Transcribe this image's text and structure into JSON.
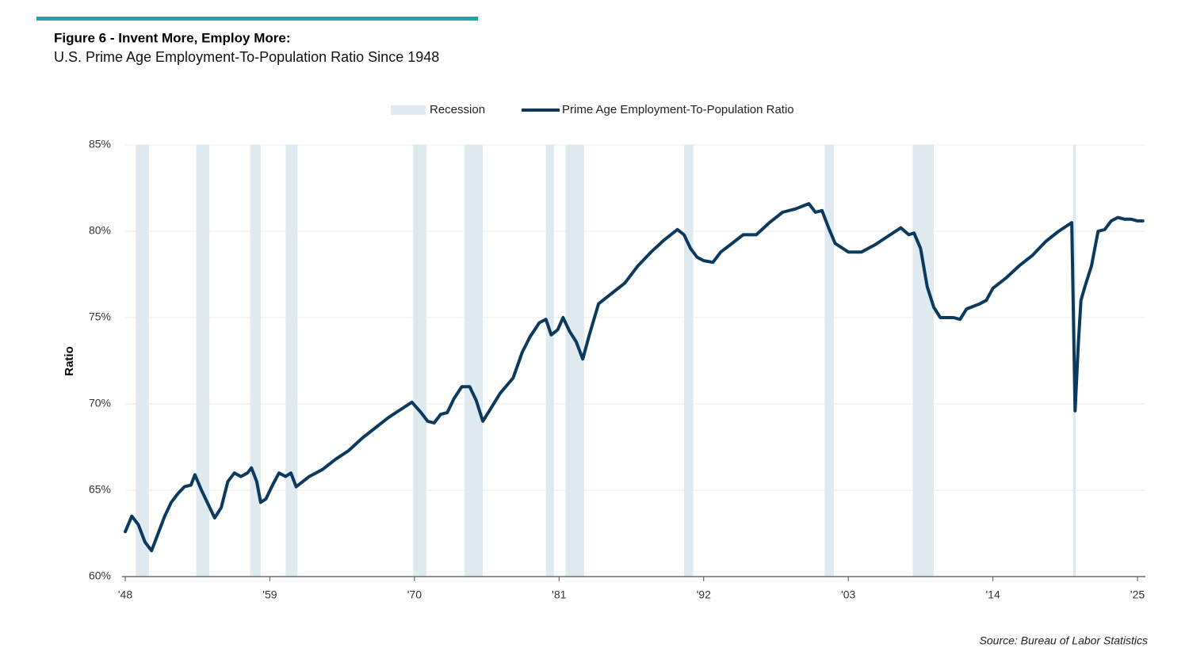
{
  "chart_data": {
    "type": "line",
    "title": "Figure 6 - Invent More, Employ More:",
    "subtitle": "U.S. Prime Age Employment-To-Population Ratio Since 1948",
    "ylabel": "Ratio",
    "source": "Source: Bureau of Labor Statistics",
    "xlim": [
      1948,
      2025.6
    ],
    "ylim": [
      60,
      85
    ],
    "xticks": [
      {
        "value": 1948,
        "label": "'48"
      },
      {
        "value": 1959,
        "label": "'59"
      },
      {
        "value": 1970,
        "label": "'70"
      },
      {
        "value": 1981,
        "label": "'81"
      },
      {
        "value": 1992,
        "label": "'92"
      },
      {
        "value": 2003,
        "label": "'03"
      },
      {
        "value": 2014,
        "label": "'14"
      },
      {
        "value": 2025,
        "label": "'25"
      }
    ],
    "yticks": [
      {
        "value": 60,
        "label": "60%"
      },
      {
        "value": 65,
        "label": "65%"
      },
      {
        "value": 70,
        "label": "70%"
      },
      {
        "value": 75,
        "label": "75%"
      },
      {
        "value": 80,
        "label": "80%"
      },
      {
        "value": 85,
        "label": "85%"
      }
    ],
    "grid": true,
    "recession_series": {
      "name": "Recession",
      "color": "#dfe9f0",
      "periods": [
        [
          1948.8,
          1949.8
        ],
        [
          1953.4,
          1954.4
        ],
        [
          1957.5,
          1958.3
        ],
        [
          1960.2,
          1961.1
        ],
        [
          1969.9,
          1970.9
        ],
        [
          1973.8,
          1975.2
        ],
        [
          1980.0,
          1980.6
        ],
        [
          1981.5,
          1982.9
        ],
        [
          1990.5,
          1991.2
        ],
        [
          2001.2,
          2001.9
        ],
        [
          2007.9,
          2009.5
        ],
        [
          2020.1,
          2020.3
        ]
      ]
    },
    "x": [
      1948,
      1948.5,
      1949,
      1949.5,
      1950,
      1950.5,
      1951,
      1951.5,
      1952,
      1952.5,
      1953,
      1953.3,
      1953.8,
      1954.3,
      1954.8,
      1955.3,
      1955.8,
      1956.3,
      1956.8,
      1957.3,
      1957.6,
      1958,
      1958.3,
      1958.7,
      1959.2,
      1959.7,
      1960.2,
      1960.6,
      1961,
      1961.5,
      1962,
      1963,
      1964,
      1965,
      1966,
      1967,
      1968,
      1969,
      1969.8,
      1970.5,
      1971,
      1971.5,
      1972,
      1972.5,
      1973,
      1973.6,
      1974.2,
      1974.7,
      1975.2,
      1975.7,
      1976.5,
      1977.5,
      1978.2,
      1978.8,
      1979.5,
      1980,
      1980.4,
      1980.9,
      1981.3,
      1981.8,
      1982.3,
      1982.8,
      1983.3,
      1984,
      1985,
      1986,
      1987,
      1988,
      1989,
      1990,
      1990.5,
      1991,
      1991.5,
      1992,
      1992.7,
      1993.3,
      1994,
      1995,
      1996,
      1997,
      1998,
      1999,
      2000,
      2000.5,
      2001,
      2001.5,
      2002,
      2003,
      2004,
      2005,
      2006,
      2007,
      2007.6,
      2008,
      2008.5,
      2009,
      2009.5,
      2010,
      2011,
      2011.5,
      2012,
      2013,
      2013.5,
      2014,
      2015,
      2016,
      2017,
      2018,
      2019,
      2020,
      2020.25,
      2020.5,
      2020.7,
      2021,
      2021.5,
      2022,
      2022.5,
      2023,
      2023.5,
      2024,
      2024.5,
      2025,
      2025.4
    ],
    "series": [
      {
        "name": "Prime Age Employment-To-Population Ratio",
        "color": "#0b3a5e",
        "values": [
          62.6,
          63.5,
          63.0,
          62.0,
          61.5,
          62.5,
          63.5,
          64.3,
          64.8,
          65.2,
          65.3,
          65.9,
          65.0,
          64.2,
          63.4,
          64.0,
          65.5,
          66.0,
          65.8,
          66.0,
          66.3,
          65.5,
          64.3,
          64.5,
          65.3,
          66.0,
          65.8,
          66.0,
          65.2,
          65.5,
          65.8,
          66.2,
          66.8,
          67.3,
          68.0,
          68.6,
          69.2,
          69.7,
          70.1,
          69.5,
          69.0,
          68.9,
          69.4,
          69.5,
          70.3,
          71.0,
          71.0,
          70.2,
          69.0,
          69.6,
          70.6,
          71.5,
          73.0,
          73.9,
          74.7,
          74.9,
          74.0,
          74.3,
          75.0,
          74.2,
          73.6,
          72.6,
          74.0,
          75.8,
          76.4,
          77.0,
          78.0,
          78.8,
          79.5,
          80.1,
          79.8,
          79.0,
          78.5,
          78.3,
          78.2,
          78.8,
          79.2,
          79.8,
          79.8,
          80.5,
          81.1,
          81.3,
          81.6,
          81.1,
          81.2,
          80.2,
          79.3,
          78.8,
          78.8,
          79.2,
          79.7,
          80.2,
          79.8,
          79.9,
          79.0,
          76.8,
          75.6,
          75.0,
          75.0,
          74.9,
          75.5,
          75.8,
          76.0,
          76.7,
          77.3,
          78.0,
          78.6,
          79.4,
          80.0,
          80.5,
          69.6,
          73.5,
          76.0,
          76.8,
          78.0,
          80.0,
          80.1,
          80.6,
          80.8,
          80.7,
          80.7,
          80.6,
          80.6
        ]
      }
    ]
  }
}
